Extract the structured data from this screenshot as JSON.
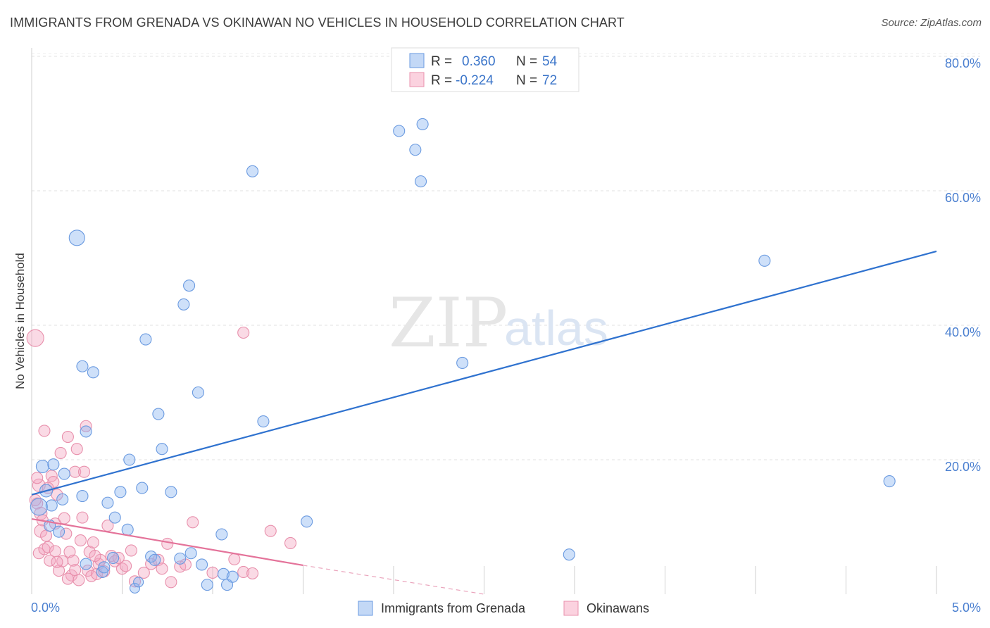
{
  "header": {
    "title": "IMMIGRANTS FROM GRENADA VS OKINAWAN NO VEHICLES IN HOUSEHOLD CORRELATION CHART",
    "source": "Source: ZipAtlas.com"
  },
  "watermark": {
    "zip": "ZIP",
    "atlas": "atlas"
  },
  "legend": {
    "rows": [
      {
        "r_label": "R =",
        "r_value": "0.360",
        "n_label": "N =",
        "n_value": "54",
        "color": "#8ab4f0"
      },
      {
        "r_label": "R =",
        "r_value": "-0.224",
        "n_label": "N =",
        "n_value": "72",
        "color": "#f4a8c0"
      }
    ]
  },
  "bottom_legend": [
    {
      "label": "Immigrants from Grenada",
      "color": "#8ab4f0"
    },
    {
      "label": "Okinawans",
      "color": "#f4a8c0"
    }
  ],
  "chart_data": {
    "type": "scatter",
    "title": "IMMIGRANTS FROM GRENADA VS OKINAWAN NO VEHICLES IN HOUSEHOLD CORRELATION CHART",
    "xlabel": "",
    "ylabel": "No Vehicles in Household",
    "xlim": [
      0,
      5
    ],
    "ylim": [
      0,
      80
    ],
    "x_tick_labels": [
      "0.0%",
      "5.0%"
    ],
    "y_tick_labels": [
      "20.0%",
      "40.0%",
      "60.0%",
      "80.0%"
    ],
    "y_ticks": [
      20,
      40,
      60,
      80
    ],
    "grid": true,
    "series": [
      {
        "name": "Immigrants from Grenada",
        "color": "#8ab4f0",
        "stroke": "#6a9ae0",
        "trend": {
          "x": [
            0,
            5
          ],
          "y": [
            14.8,
            51.0
          ],
          "color": "#2f72cf"
        },
        "points": [
          [
            0.25,
            53.0,
            11
          ],
          [
            0.06,
            19.0,
            9
          ],
          [
            0.12,
            19.3,
            8
          ],
          [
            0.08,
            15.4,
            9
          ],
          [
            0.11,
            13.2,
            8
          ],
          [
            0.04,
            13.0,
            12
          ],
          [
            0.17,
            14.1,
            8
          ],
          [
            0.3,
            24.2,
            8
          ],
          [
            0.28,
            14.6,
            8
          ],
          [
            0.18,
            17.9,
            8
          ],
          [
            0.28,
            33.9,
            8
          ],
          [
            0.34,
            33.0,
            8
          ],
          [
            0.42,
            13.6,
            8
          ],
          [
            0.46,
            11.4,
            8
          ],
          [
            0.49,
            15.2,
            8
          ],
          [
            0.53,
            9.6,
            8
          ],
          [
            0.54,
            20.0,
            8
          ],
          [
            0.57,
            0.9,
            7
          ],
          [
            0.59,
            1.8,
            7
          ],
          [
            0.61,
            15.8,
            8
          ],
          [
            0.63,
            37.9,
            8
          ],
          [
            0.66,
            5.6,
            8
          ],
          [
            0.68,
            5.1,
            8
          ],
          [
            0.7,
            26.8,
            8
          ],
          [
            0.72,
            21.6,
            8
          ],
          [
            0.77,
            15.2,
            8
          ],
          [
            0.82,
            5.3,
            8
          ],
          [
            0.84,
            43.1,
            8
          ],
          [
            0.87,
            45.9,
            8
          ],
          [
            0.88,
            6.1,
            8
          ],
          [
            0.92,
            30.0,
            8
          ],
          [
            0.94,
            4.4,
            8
          ],
          [
            0.97,
            1.4,
            8
          ],
          [
            1.05,
            8.9,
            8
          ],
          [
            1.06,
            3.0,
            8
          ],
          [
            1.08,
            1.4,
            8
          ],
          [
            1.11,
            2.6,
            8
          ],
          [
            1.22,
            62.9,
            8
          ],
          [
            1.28,
            25.7,
            8
          ],
          [
            1.52,
            10.8,
            8
          ],
          [
            2.03,
            68.9,
            8
          ],
          [
            2.12,
            66.1,
            8
          ],
          [
            2.15,
            61.4,
            8
          ],
          [
            2.16,
            69.9,
            8
          ],
          [
            2.38,
            34.4,
            8
          ],
          [
            2.97,
            5.9,
            8
          ],
          [
            4.05,
            49.6,
            8
          ],
          [
            4.74,
            16.8,
            8
          ],
          [
            0.39,
            3.3,
            8
          ],
          [
            0.4,
            4.0,
            8
          ],
          [
            0.45,
            5.4,
            8
          ],
          [
            0.1,
            10.2,
            8
          ],
          [
            0.15,
            9.3,
            8
          ],
          [
            0.3,
            4.5,
            8
          ]
        ]
      },
      {
        "name": "Okinawans",
        "color": "#f4a8c0",
        "stroke": "#e890ac",
        "trend": {
          "x": [
            0,
            1.5
          ],
          "y": [
            11.2,
            4.3
          ],
          "color": "#e4739a"
        },
        "trend_dashed": {
          "x": [
            1.5,
            2.5
          ],
          "y": [
            4.3,
            0.0
          ]
        },
        "points": [
          [
            0.02,
            38.1,
            12
          ],
          [
            0.04,
            16.2,
            9
          ],
          [
            0.03,
            13.5,
            8
          ],
          [
            0.05,
            12.0,
            9
          ],
          [
            0.06,
            11.0,
            8
          ],
          [
            0.05,
            9.4,
            9
          ],
          [
            0.08,
            8.7,
            8
          ],
          [
            0.04,
            6.1,
            8
          ],
          [
            0.07,
            6.7,
            8
          ],
          [
            0.09,
            7.0,
            8
          ],
          [
            0.1,
            5.0,
            8
          ],
          [
            0.11,
            17.6,
            8
          ],
          [
            0.12,
            16.7,
            8
          ],
          [
            0.13,
            10.5,
            8
          ],
          [
            0.14,
            14.8,
            8
          ],
          [
            0.15,
            3.5,
            8
          ],
          [
            0.16,
            21.0,
            8
          ],
          [
            0.17,
            4.9,
            8
          ],
          [
            0.18,
            11.3,
            8
          ],
          [
            0.19,
            9.0,
            8
          ],
          [
            0.2,
            23.4,
            8
          ],
          [
            0.21,
            6.3,
            8
          ],
          [
            0.22,
            2.8,
            8
          ],
          [
            0.23,
            5.0,
            8
          ],
          [
            0.24,
            18.2,
            8
          ],
          [
            0.25,
            21.6,
            8
          ],
          [
            0.26,
            2.1,
            8
          ],
          [
            0.27,
            8.0,
            8
          ],
          [
            0.28,
            11.4,
            8
          ],
          [
            0.29,
            18.2,
            8
          ],
          [
            0.3,
            25.0,
            8
          ],
          [
            0.31,
            3.5,
            8
          ],
          [
            0.32,
            6.3,
            8
          ],
          [
            0.33,
            2.7,
            8
          ],
          [
            0.34,
            7.7,
            8
          ],
          [
            0.36,
            3.0,
            8
          ],
          [
            0.37,
            4.5,
            8
          ],
          [
            0.38,
            5.1,
            8
          ],
          [
            0.4,
            3.4,
            8
          ],
          [
            0.42,
            10.2,
            8
          ],
          [
            0.44,
            5.7,
            8
          ],
          [
            0.46,
            4.9,
            8
          ],
          [
            0.48,
            5.4,
            8
          ],
          [
            0.5,
            3.8,
            8
          ],
          [
            0.55,
            6.5,
            8
          ],
          [
            0.57,
            1.9,
            8
          ],
          [
            0.62,
            3.2,
            8
          ],
          [
            0.66,
            4.5,
            8
          ],
          [
            0.7,
            5.1,
            8
          ],
          [
            0.72,
            3.8,
            8
          ],
          [
            0.75,
            7.5,
            8
          ],
          [
            0.77,
            1.8,
            8
          ],
          [
            0.82,
            4.1,
            8
          ],
          [
            0.85,
            4.4,
            8
          ],
          [
            0.89,
            10.7,
            8
          ],
          [
            1.0,
            3.2,
            8
          ],
          [
            1.12,
            5.2,
            8
          ],
          [
            1.17,
            3.3,
            8
          ],
          [
            1.22,
            3.1,
            8
          ],
          [
            1.17,
            38.9,
            8
          ],
          [
            1.32,
            9.4,
            8
          ],
          [
            1.43,
            7.6,
            8
          ],
          [
            0.07,
            24.3,
            8
          ],
          [
            0.03,
            17.3,
            8
          ],
          [
            0.02,
            14.0,
            8
          ],
          [
            0.13,
            6.4,
            8
          ],
          [
            0.14,
            4.8,
            8
          ],
          [
            0.2,
            2.3,
            8
          ],
          [
            0.24,
            3.6,
            8
          ],
          [
            0.09,
            15.8,
            8
          ],
          [
            0.35,
            5.7,
            8
          ],
          [
            0.52,
            4.2,
            8
          ]
        ]
      }
    ]
  }
}
